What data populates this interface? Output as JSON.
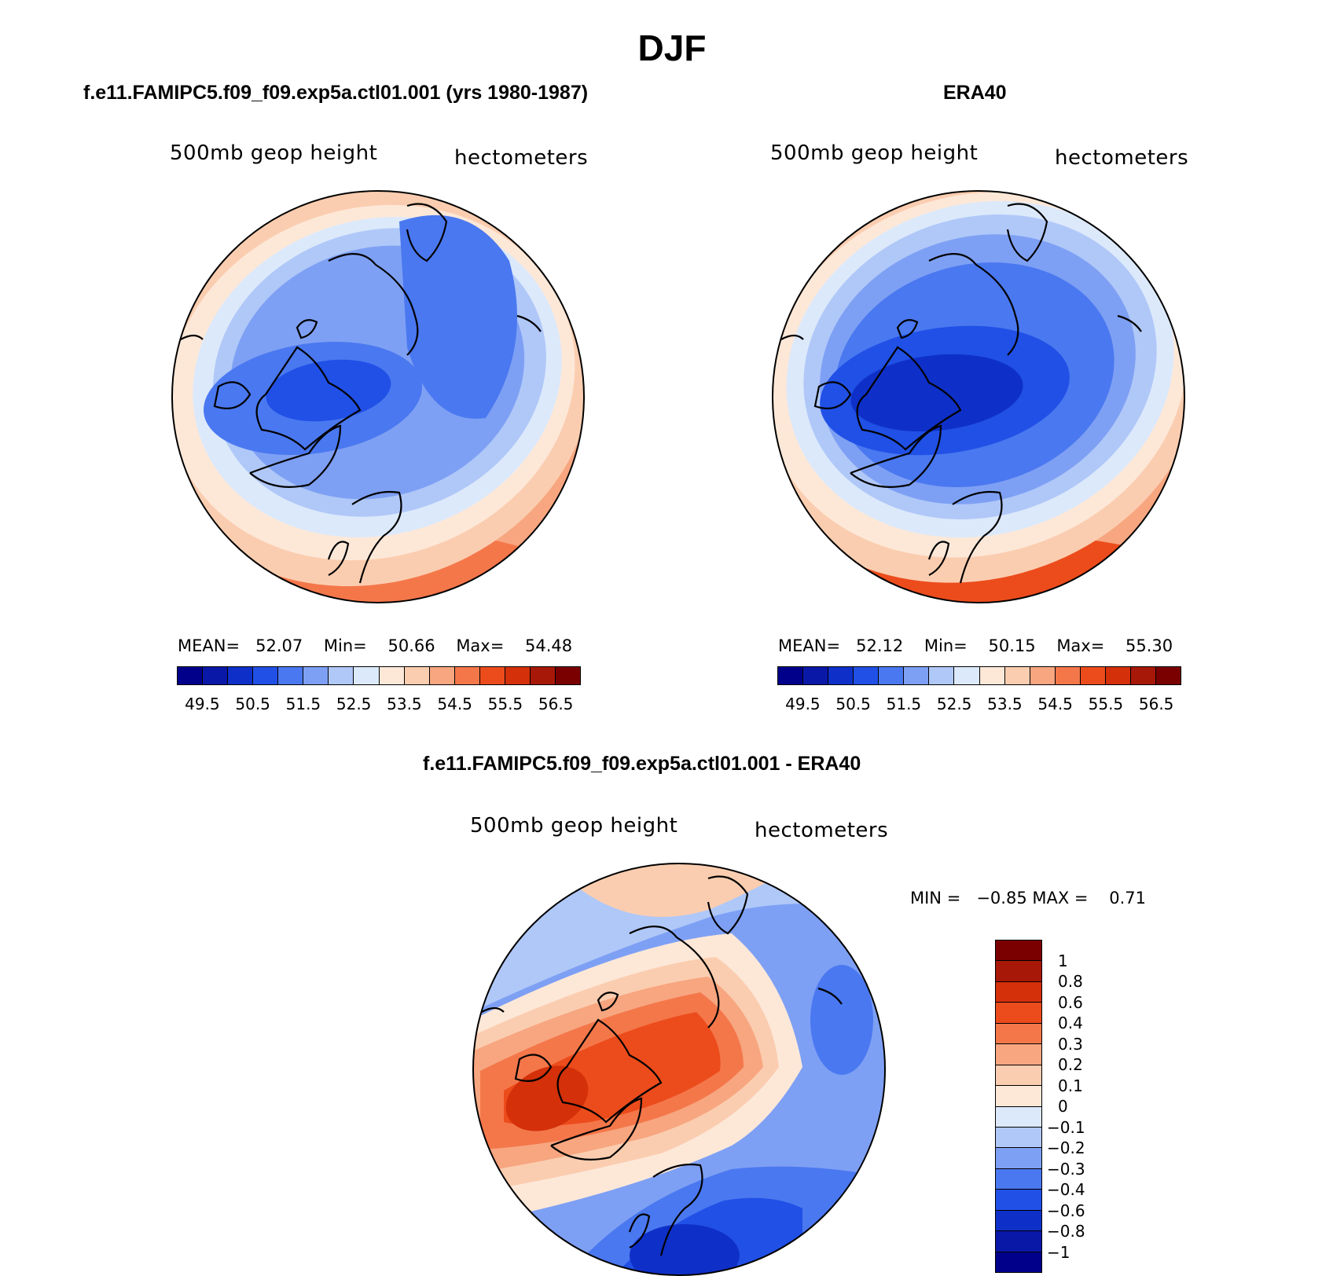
{
  "title": "DJF",
  "colors": {
    "abs": [
      "#00008b",
      "#0a18a8",
      "#0f30c8",
      "#2050e6",
      "#4a78f0",
      "#7ea0f4",
      "#b0c8f8",
      "#dce9fb",
      "#fde8d8",
      "#fbcdb0",
      "#f7a680",
      "#f4774a",
      "#ec4c1c",
      "#d4300a",
      "#a81808",
      "#7a0000"
    ],
    "diff": [
      "#7a0000",
      "#a81808",
      "#d4300a",
      "#ec4c1c",
      "#f4774a",
      "#f7a680",
      "#fbcdb0",
      "#fde8d8",
      "#dce9fb",
      "#b0c8f8",
      "#7ea0f4",
      "#4a78f0",
      "#2050e6",
      "#0f30c8",
      "#0a18a8",
      "#00008b"
    ]
  },
  "panels": {
    "model": {
      "title": "f.e11.FAMIPC5.f09_f09.exp5a.ctl01.001 (yrs 1980-1987)",
      "label_left": "500mb  geop  height",
      "label_right": "hectometers",
      "stats": {
        "mean_label": "MEAN=",
        "mean": "52.07",
        "min_label": "Min=",
        "min": "50.66",
        "max_label": "Max=",
        "max": "54.48"
      },
      "ticks": [
        "49.5",
        "50.5",
        "51.5",
        "52.5",
        "53.5",
        "54.5",
        "55.5",
        "56.5"
      ]
    },
    "obs": {
      "title": "ERA40",
      "label_left": "500mb  geop  height",
      "label_right": "hectometers",
      "stats": {
        "mean_label": "MEAN=",
        "mean": "52.12",
        "min_label": "Min=",
        "min": "50.15",
        "max_label": "Max=",
        "max": "55.30"
      },
      "ticks": [
        "49.5",
        "50.5",
        "51.5",
        "52.5",
        "53.5",
        "54.5",
        "55.5",
        "56.5"
      ]
    },
    "diff": {
      "title": "f.e11.FAMIPC5.f09_f09.exp5a.ctl01.001 - ERA40",
      "label_left": "500mb  geop  height",
      "label_right": "hectometers",
      "stats": {
        "min_label": "MIN =",
        "min": "−0.85",
        "max_label": "MAX =",
        "max": "0.71"
      },
      "ticks": [
        "1",
        "0.8",
        "0.6",
        "0.4",
        "0.3",
        "0.2",
        "0.1",
        "0",
        "−0.1",
        "−0.2",
        "−0.3",
        "−0.4",
        "−0.6",
        "−0.8",
        "−1"
      ]
    }
  }
}
